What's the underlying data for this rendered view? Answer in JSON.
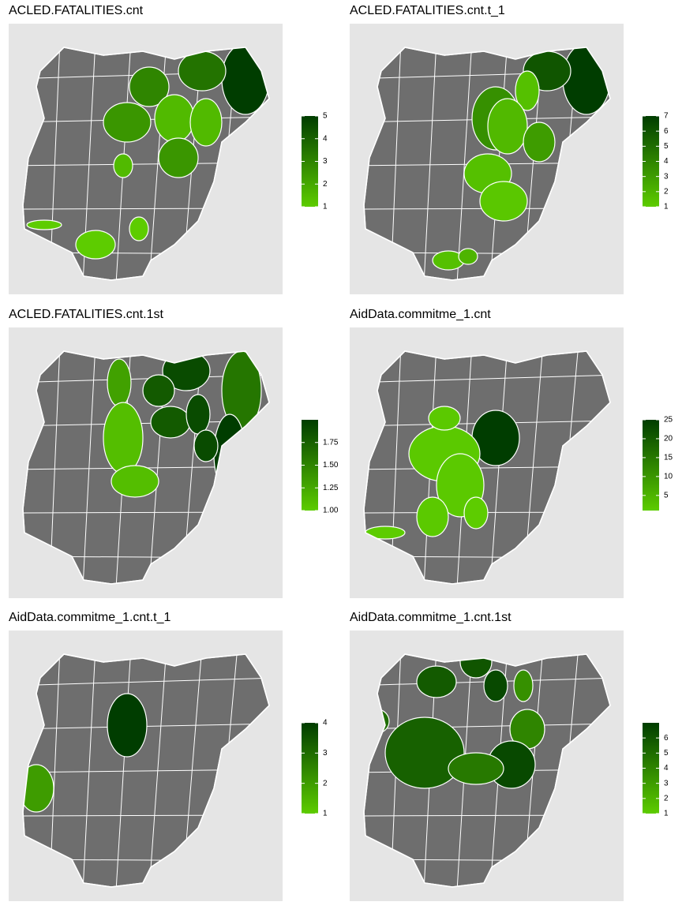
{
  "low_color": "#5dcc00",
  "high_color": "#003d00",
  "maps": [
    {
      "title": "ACLED.FATALITIES.cnt",
      "lim": [
        1,
        5
      ],
      "ticks": [
        1,
        2,
        3,
        4,
        5
      ],
      "values": [
        5,
        3.5,
        3,
        2.5,
        1.5,
        1.5,
        2.5,
        1.5,
        1,
        1,
        1
      ]
    },
    {
      "title": "ACLED.FATALITIES.cnt.t_1",
      "lim": [
        1,
        7
      ],
      "ticks": [
        1,
        2,
        3,
        4,
        5,
        6,
        7
      ],
      "values": [
        7,
        6,
        3.5,
        1.5,
        1.8,
        3,
        1.5,
        1.2,
        1.5,
        2
      ]
    },
    {
      "title": "ACLED.FATALITIES.cnt.1st",
      "lim": [
        1,
        2
      ],
      "ticks": [
        {
          "value": 1,
          "label": "1.00"
        },
        {
          "value": 1.25,
          "label": "1.25"
        },
        {
          "value": 1.5,
          "label": "1.50"
        },
        {
          "value": 1.75,
          "label": "1.75"
        }
      ],
      "values": [
        1.6,
        2,
        1.9,
        1.8,
        1.3,
        1.1,
        1.1,
        1.8,
        1.9,
        1.9
      ]
    },
    {
      "title": "AidData.commitme_1.cnt",
      "lim": [
        1,
        25
      ],
      "ticks": [
        5,
        10,
        15,
        20,
        25
      ],
      "values": [
        25,
        1.5,
        1.5,
        1.5,
        1.5,
        1,
        1
      ]
    },
    {
      "title": "AidData.commitme_1.cnt.t_1",
      "lim": [
        1,
        4
      ],
      "ticks": [
        1,
        2,
        3,
        4
      ],
      "values": [
        4,
        2
      ]
    },
    {
      "title": "AidData.commitme_1.cnt.1st",
      "lim": [
        1,
        7
      ],
      "ticks": [
        1,
        2,
        3,
        4,
        5,
        6
      ],
      "values": [
        5.8,
        6,
        6.5,
        3.5,
        4,
        5.5,
        5,
        6.5,
        4.5
      ]
    }
  ]
}
